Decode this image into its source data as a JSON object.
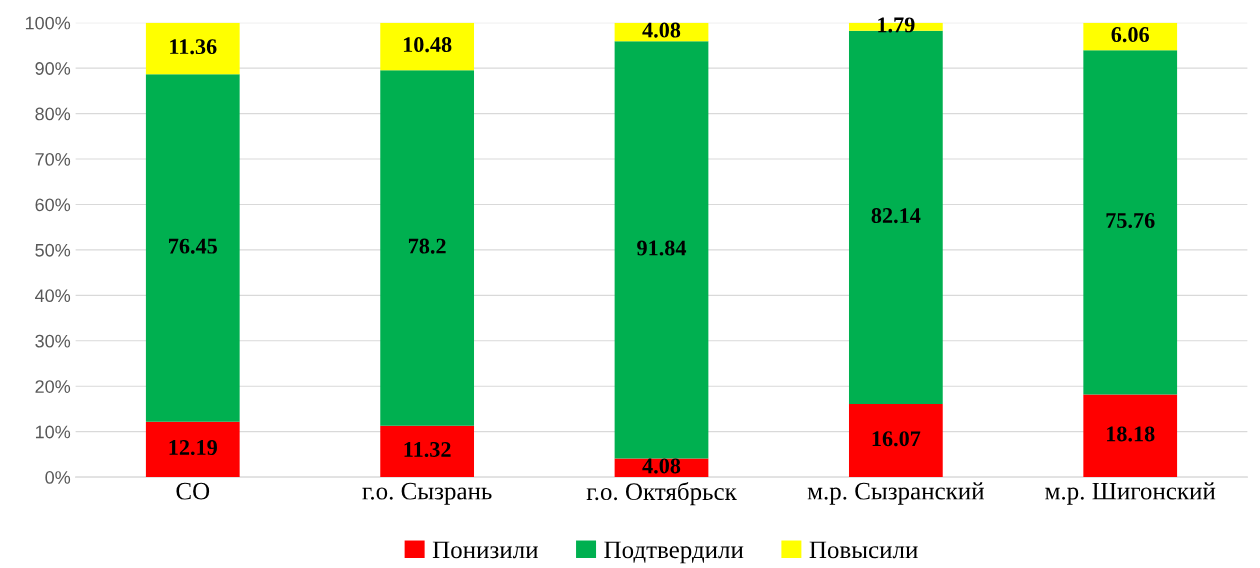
{
  "chart_data": {
    "type": "bar",
    "stacked": true,
    "categories": [
      "СО",
      "г.о. Сызрань",
      "г.о. Октябрьск",
      "м.р. Сызранский",
      "м.р. Шигонский"
    ],
    "series": [
      {
        "name": "Понизили",
        "color": "#ff0000",
        "values": [
          12.19,
          11.32,
          4.08,
          16.07,
          18.18
        ]
      },
      {
        "name": "Подтвердили",
        "color": "#00b050",
        "values": [
          76.45,
          78.2,
          91.84,
          82.14,
          75.76
        ]
      },
      {
        "name": "Повысили",
        "color": "#ffff00",
        "values": [
          11.36,
          10.48,
          4.08,
          1.79,
          6.06
        ]
      }
    ],
    "ylim": [
      0,
      100
    ],
    "yticks": [
      {
        "value": 0,
        "label": "0%"
      },
      {
        "value": 10,
        "label": "10%"
      },
      {
        "value": 20,
        "label": "20%"
      },
      {
        "value": 30,
        "label": "30%"
      },
      {
        "value": 40,
        "label": "40%"
      },
      {
        "value": 50,
        "label": "50%"
      },
      {
        "value": 60,
        "label": "60%"
      },
      {
        "value": 70,
        "label": "70%"
      },
      {
        "value": 80,
        "label": "80%"
      },
      {
        "value": 90,
        "label": "90%"
      },
      {
        "value": 100,
        "label": "100%"
      }
    ],
    "grid": "y",
    "data_labels": true,
    "legend": "bottom"
  }
}
